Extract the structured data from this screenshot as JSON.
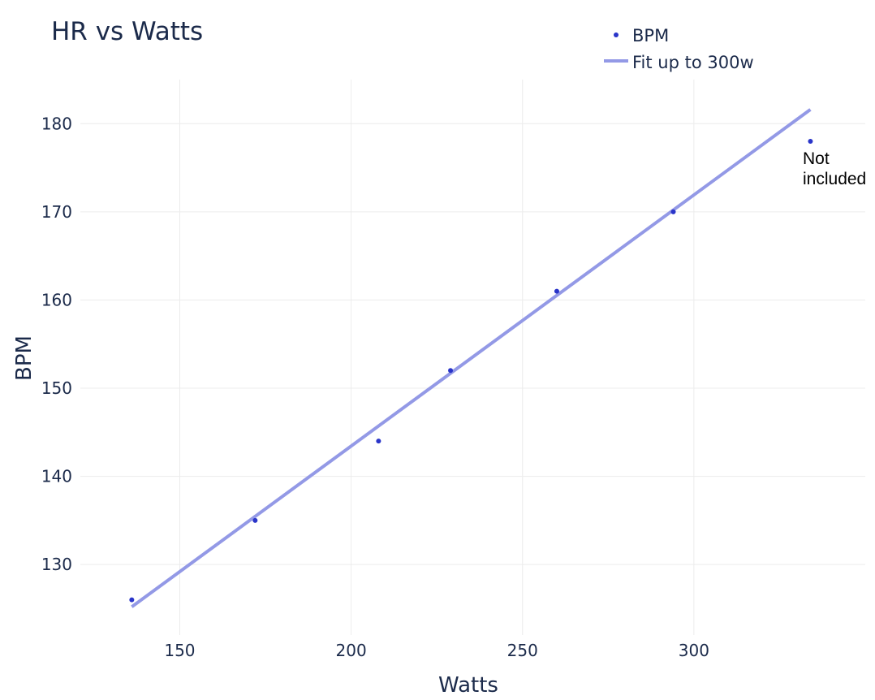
{
  "chart_data": {
    "type": "scatter",
    "title": "HR vs Watts",
    "xlabel": "Watts",
    "ylabel": "BPM",
    "xlim": [
      121,
      350
    ],
    "ylim": [
      122,
      185
    ],
    "xticks": [
      150,
      200,
      250,
      300
    ],
    "yticks": [
      130,
      140,
      150,
      160,
      170,
      180
    ],
    "grid": true,
    "legend_position": "top-right",
    "series": [
      {
        "name": "BPM",
        "mode": "markers",
        "color": "#2a35c9",
        "x": [
          136,
          172,
          208,
          229,
          260,
          294,
          334
        ],
        "y": [
          126,
          135,
          144,
          152,
          161,
          170,
          178
        ]
      },
      {
        "name": "Fit up to 300w",
        "mode": "line",
        "color": "#9399e6",
        "x": [
          136,
          334
        ],
        "y": [
          125.2,
          181.6
        ]
      }
    ],
    "annotations": [
      {
        "lines": [
          "Not",
          "included"
        ],
        "x": 334,
        "y": 178
      }
    ]
  }
}
